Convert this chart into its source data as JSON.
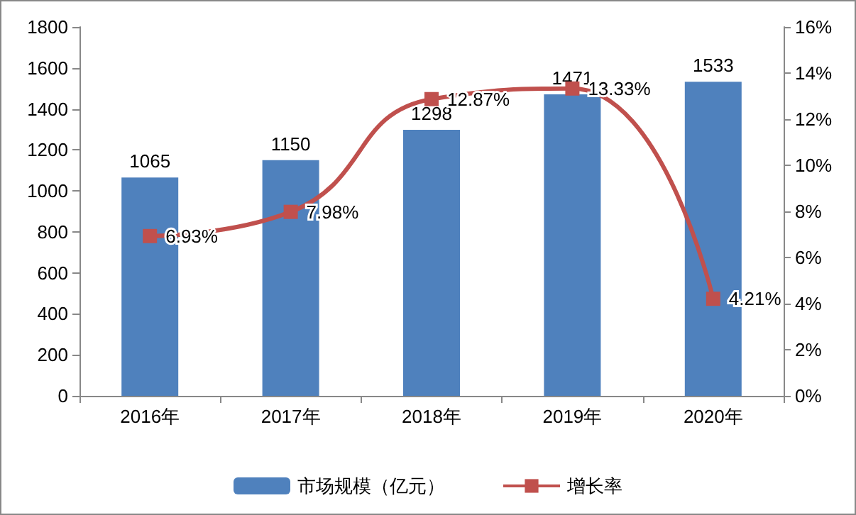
{
  "chart_data": {
    "type": "bar",
    "categories": [
      "2016年",
      "2017年",
      "2018年",
      "2019年",
      "2020年"
    ],
    "series": [
      {
        "name": "市场规模（亿元）",
        "color": "#4f81bd",
        "values": [
          1065,
          1150,
          1298,
          1471,
          1533
        ],
        "value_labels": [
          "1065",
          "1150",
          "1298",
          "1471",
          "1533"
        ]
      },
      {
        "name": "增长率",
        "type": "line",
        "axis": "y2",
        "color": "#c0504d",
        "values": [
          6.93,
          7.98,
          12.87,
          13.33,
          4.21
        ],
        "value_labels": [
          "6.93%",
          "7.98%",
          "12.87%",
          "13.33%",
          "4.21%"
        ]
      }
    ],
    "ylim": [
      0,
      1800
    ],
    "yticks": [
      0,
      200,
      400,
      600,
      800,
      1000,
      1200,
      1400,
      1600,
      1800
    ],
    "y2lim": [
      0,
      16
    ],
    "y2ticks": [
      {
        "value": 0,
        "label": "0%"
      },
      {
        "value": 2,
        "label": "2%"
      },
      {
        "value": 4,
        "label": "4%"
      },
      {
        "value": 6,
        "label": "6%"
      },
      {
        "value": 8,
        "label": "8%"
      },
      {
        "value": 10,
        "label": "10%"
      },
      {
        "value": 12,
        "label": "12%"
      },
      {
        "value": 14,
        "label": "14%"
      },
      {
        "value": 16,
        "label": "16%"
      }
    ],
    "marker": "square",
    "grid": false,
    "legend": "bottom"
  }
}
